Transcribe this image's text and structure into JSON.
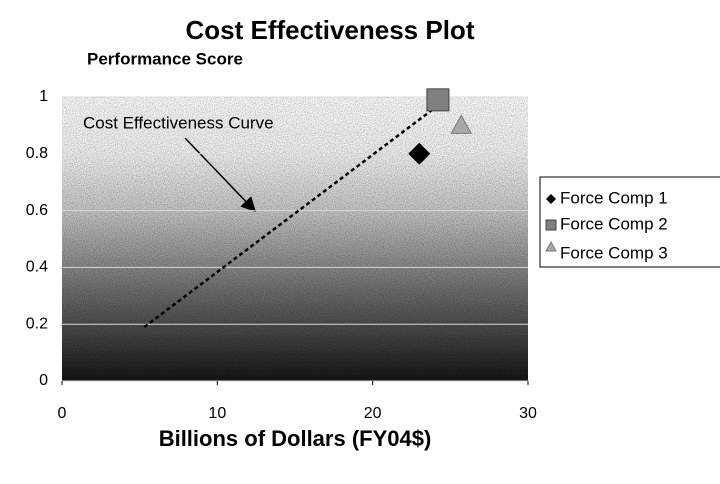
{
  "chart_data": {
    "type": "scatter",
    "title": "Cost Effectiveness Plot",
    "ylabel": "Performance Score",
    "xlabel": "Billions of Dollars (FY04$)",
    "xlim": [
      0,
      30
    ],
    "xticks": [
      0,
      10,
      20,
      30
    ],
    "ylim": [
      0,
      1
    ],
    "yticks": [
      0,
      0.2,
      0.4,
      0.6,
      0.8,
      1
    ],
    "grid": true,
    "legend": "right",
    "series": [
      {
        "name": "Force Comp 1",
        "marker": "diamond",
        "color": "#000000",
        "x": [
          23
        ],
        "values": [
          0.8
        ]
      },
      {
        "name": "Force Comp 2",
        "marker": "square",
        "color": "#808080",
        "x": [
          24.2
        ],
        "values": [
          0.99
        ]
      },
      {
        "name": "Force Comp 3",
        "marker": "triangle",
        "color": "#a8a8a8",
        "x": [
          25.7
        ],
        "values": [
          0.9
        ]
      }
    ],
    "curve": {
      "label": "Cost Effectiveness Curve",
      "x": [
        5.3,
        24.2
      ],
      "values": [
        0.19,
        0.97
      ]
    }
  }
}
